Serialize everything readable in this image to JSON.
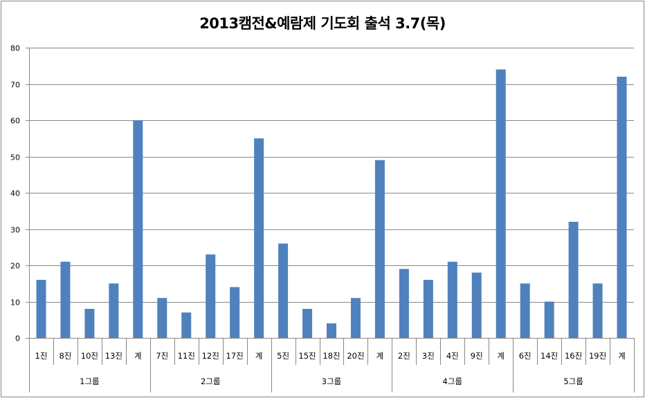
{
  "chart_data": {
    "type": "bar",
    "title": "2013캠전&예람제 기도회 출석 3.7(목)",
    "xlabel": "",
    "ylabel": "",
    "ylim": [
      0,
      80
    ],
    "yticks": [
      0,
      10,
      20,
      30,
      40,
      50,
      60,
      70,
      80
    ],
    "grid": true,
    "legend": "none",
    "bar_color": "#4F81BD",
    "groups": [
      {
        "label": "1그룹",
        "categories": [
          "1진",
          "8진",
          "10진",
          "13진",
          "계"
        ],
        "values": [
          16,
          21,
          8,
          15,
          60
        ]
      },
      {
        "label": "2그룹",
        "categories": [
          "7진",
          "11진",
          "12진",
          "17진",
          "계"
        ],
        "values": [
          11,
          7,
          23,
          14,
          55
        ]
      },
      {
        "label": "3그룹",
        "categories": [
          "5진",
          "15진",
          "18진",
          "20진",
          "계"
        ],
        "values": [
          26,
          8,
          4,
          11,
          49
        ]
      },
      {
        "label": "4그룹",
        "categories": [
          "2진",
          "3진",
          "4진",
          "9진",
          "계"
        ],
        "values": [
          19,
          16,
          21,
          18,
          74
        ]
      },
      {
        "label": "5그룹",
        "categories": [
          "6진",
          "14진",
          "16진",
          "19진",
          "계"
        ],
        "values": [
          15,
          10,
          32,
          15,
          72
        ]
      }
    ],
    "categories": [
      "1진",
      "8진",
      "10진",
      "13진",
      "계",
      "7진",
      "11진",
      "12진",
      "17진",
      "계",
      "5진",
      "15진",
      "18진",
      "20진",
      "계",
      "2진",
      "3진",
      "4진",
      "9진",
      "계",
      "6진",
      "14진",
      "16진",
      "19진",
      "계"
    ],
    "values": [
      16,
      21,
      8,
      15,
      60,
      11,
      7,
      23,
      14,
      55,
      26,
      8,
      4,
      11,
      49,
      19,
      16,
      21,
      18,
      74,
      15,
      10,
      32,
      15,
      72
    ]
  }
}
